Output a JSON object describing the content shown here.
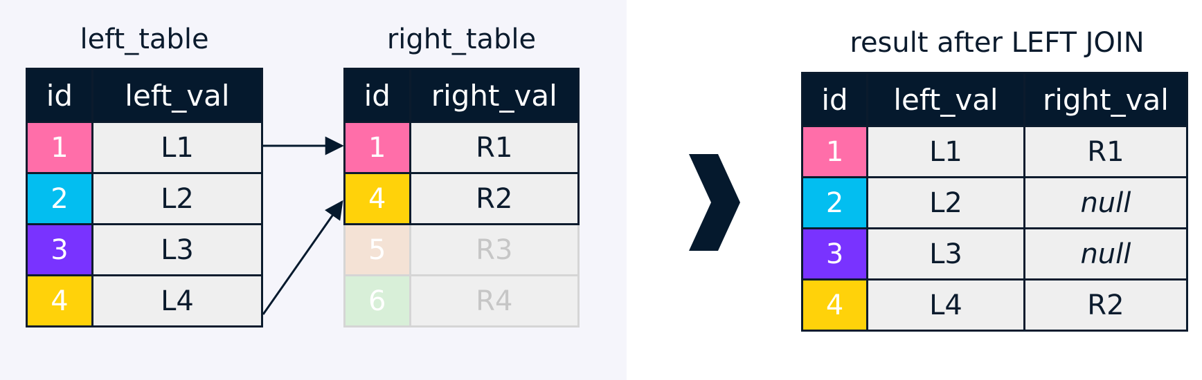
{
  "left_table": {
    "title": "left_table",
    "columns": [
      "id",
      "left_val"
    ],
    "rows": [
      {
        "id": "1",
        "val": "L1",
        "color": "#ff6ea9"
      },
      {
        "id": "2",
        "val": "L2",
        "color": "#03bef0"
      },
      {
        "id": "3",
        "val": "L3",
        "color": "#7933ff"
      },
      {
        "id": "4",
        "val": "L4",
        "color": "#ffd20a"
      }
    ]
  },
  "right_table": {
    "title": "right_table",
    "columns": [
      "id",
      "right_val"
    ],
    "rows": [
      {
        "id": "1",
        "val": "R1",
        "color": "#ff6ea9"
      },
      {
        "id": "4",
        "val": "R2",
        "color": "#ffd20a"
      },
      {
        "id": "5",
        "val": "R3",
        "color": "#f4e2d5"
      },
      {
        "id": "6",
        "val": "R4",
        "color": "#d8efd8"
      }
    ]
  },
  "result_table": {
    "title": "result after LEFT JOIN",
    "columns": [
      "id",
      "left_val",
      "right_val"
    ],
    "rows": [
      {
        "id": "1",
        "left_val": "L1",
        "right_val": "R1",
        "color": "#ff6ea9"
      },
      {
        "id": "2",
        "left_val": "L2",
        "right_val": "null",
        "color": "#03bef0"
      },
      {
        "id": "3",
        "left_val": "L3",
        "right_val": "null",
        "color": "#7933ff"
      },
      {
        "id": "4",
        "left_val": "L4",
        "right_val": "R2",
        "color": "#ffd20a"
      }
    ]
  },
  "icons": {
    "arrow": "arrow-icon",
    "chevron": "chevron-right-icon"
  },
  "colors": {
    "header": "#05192d",
    "cell": "#efefef",
    "panel": "#f5f5fb"
  }
}
